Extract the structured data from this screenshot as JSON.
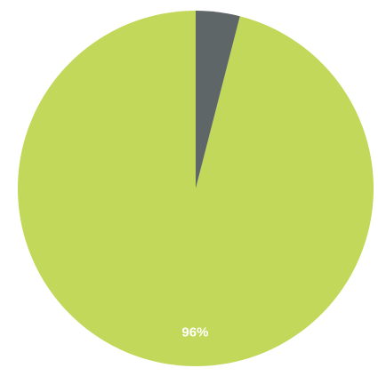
{
  "chart_data": {
    "type": "pie",
    "title": "",
    "start_angle_deg": 0,
    "direction": "counterclockwise",
    "slices": [
      {
        "value": 96,
        "label": "96%",
        "color": "#c2d85a"
      },
      {
        "value": 4,
        "label": "",
        "color": "#5f6667"
      }
    ]
  }
}
